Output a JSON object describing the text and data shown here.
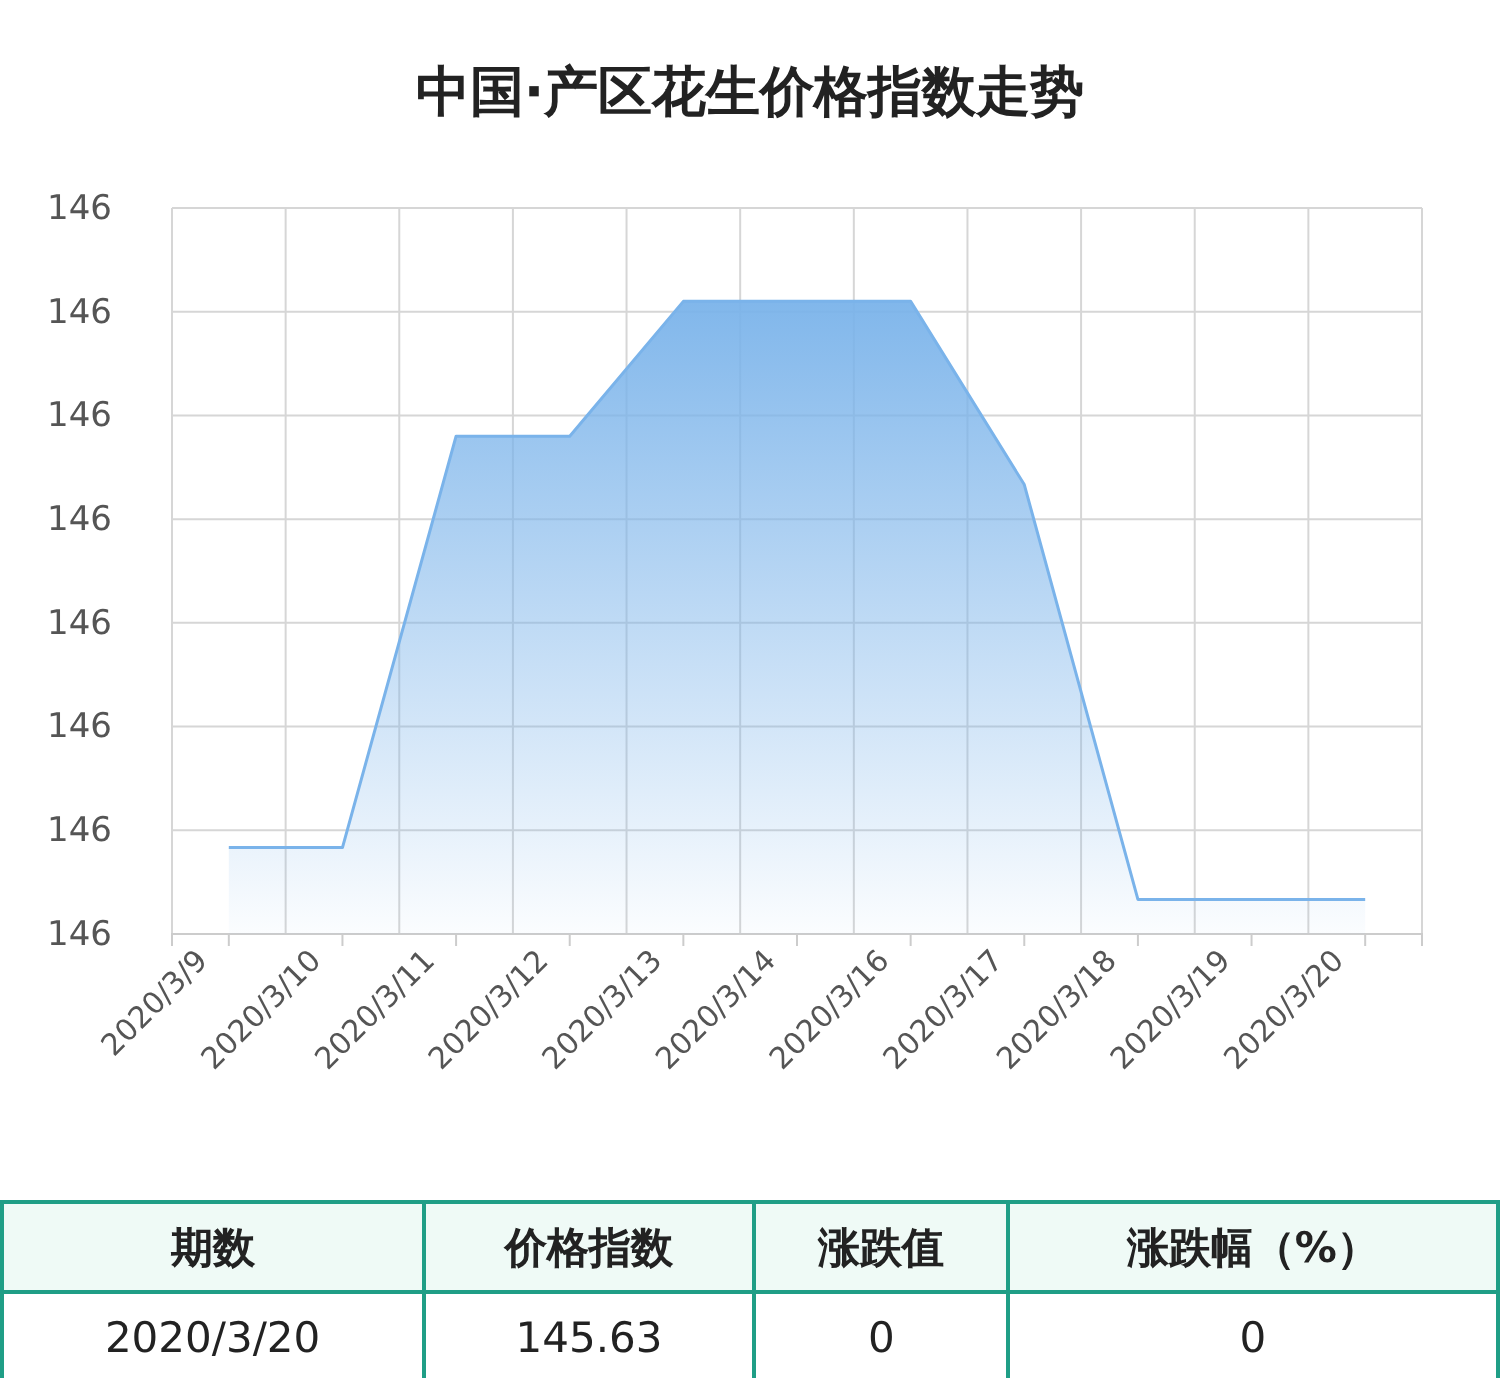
{
  "chart_data": {
    "type": "area",
    "title": "中国·产区花生价格指数走势",
    "categories": [
      "2020/3/9",
      "2020/3/10",
      "2020/3/11",
      "2020/3/12",
      "2020/3/13",
      "2020/3/14",
      "2020/3/16",
      "2020/3/17",
      "2020/3/18",
      "2020/3/19",
      "2020/3/20"
    ],
    "series": [
      {
        "color": "#7ab3ea",
        "values": [
          145.645,
          145.645,
          145.764,
          145.764,
          145.803,
          145.803,
          145.803,
          145.75,
          145.63,
          145.63,
          145.63
        ]
      }
    ],
    "ylim": [
      145.62,
      145.83
    ],
    "yticks": [
      {
        "value": 145.62,
        "label": "146"
      },
      {
        "value": 145.65,
        "label": "146"
      },
      {
        "value": 145.68,
        "label": "146"
      },
      {
        "value": 145.71,
        "label": "146"
      },
      {
        "value": 145.74,
        "label": "146"
      },
      {
        "value": 145.77,
        "label": "146"
      },
      {
        "value": 145.8,
        "label": "146"
      },
      {
        "value": 145.83,
        "label": "146"
      }
    ],
    "grid": true,
    "annotations": [
      "期数",
      "价格指数",
      "涨跌值",
      "涨跌幅（%）",
      "2020/3/20",
      "145.63",
      "0",
      "0"
    ]
  }
}
